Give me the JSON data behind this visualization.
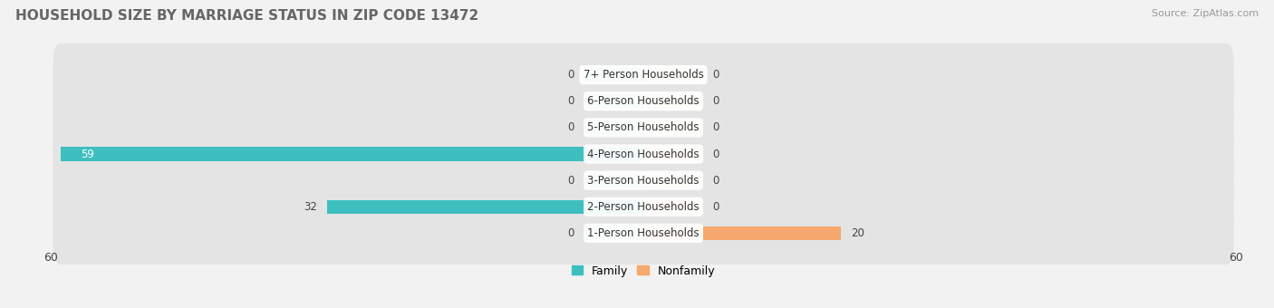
{
  "title": "HOUSEHOLD SIZE BY MARRIAGE STATUS IN ZIP CODE 13472",
  "source": "Source: ZipAtlas.com",
  "categories": [
    "7+ Person Households",
    "6-Person Households",
    "5-Person Households",
    "4-Person Households",
    "3-Person Households",
    "2-Person Households",
    "1-Person Households"
  ],
  "family_values": [
    0,
    0,
    0,
    59,
    0,
    32,
    0
  ],
  "nonfamily_values": [
    0,
    0,
    0,
    0,
    0,
    0,
    20
  ],
  "family_color": "#3dbfbf",
  "nonfamily_color": "#f5a96e",
  "family_stub_color": "#a0dada",
  "nonfamily_stub_color": "#f5c99e",
  "xlim": [
    -60,
    60
  ],
  "background_color": "#f2f2f2",
  "row_bg_color": "#e4e4e4",
  "title_fontsize": 11,
  "source_fontsize": 8,
  "label_fontsize": 8.5,
  "tick_fontsize": 9,
  "legend_fontsize": 9,
  "stub_size": 6
}
